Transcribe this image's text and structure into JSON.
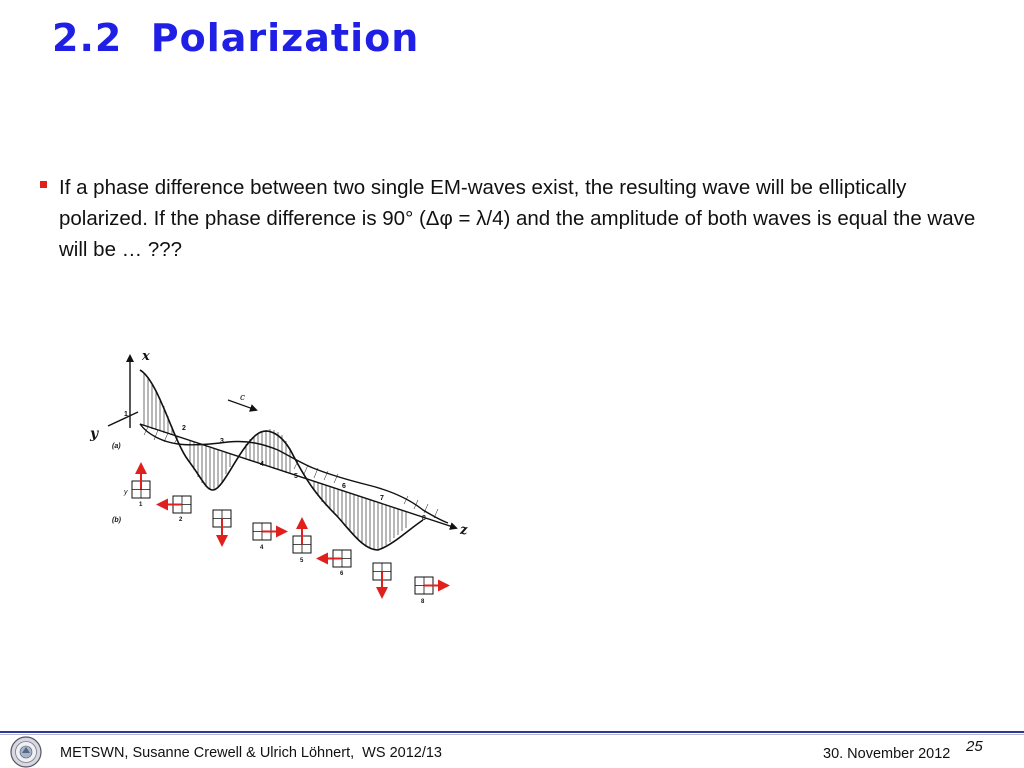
{
  "slide": {
    "title": "2.2  Polarization",
    "bullet_text": "If a phase difference between two single EM-waves exist, the resulting wave will be elliptically polarized. If the phase difference is 90°   (Δφ = λ/4) and the amplitude of both waves is equal the wave will be … ???"
  },
  "figure": {
    "axis_x": "x",
    "axis_y": "y",
    "axis_z": "z",
    "arrow_c": "c",
    "label_a": "(a)",
    "label_b": "(b)",
    "label_y_small": "y",
    "wave_points": [
      "1",
      "2",
      "3",
      "4",
      "5",
      "6",
      "7",
      "8"
    ],
    "box_labels": [
      "1",
      "2",
      "3",
      "4",
      "5",
      "6",
      "7",
      "8"
    ]
  },
  "footer": {
    "left_text": "METSWN, Susanne Crewell & Ulrich Löhnert,  WS 2012/13",
    "date": "30. November 2012",
    "page_number": "25"
  },
  "colors": {
    "title": "#1f1fe6",
    "bullet": "#e0201c",
    "footer_line": "#2a3a9a",
    "arrow_red": "#e0201c"
  }
}
